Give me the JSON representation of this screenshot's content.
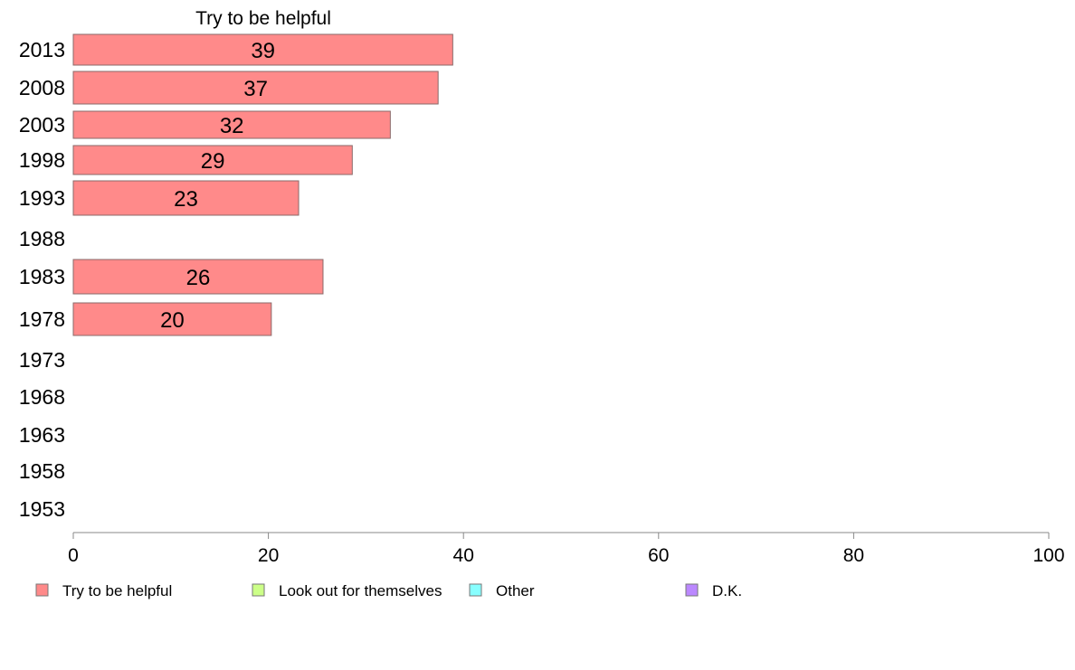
{
  "chart_data": {
    "type": "bar",
    "orientation": "horizontal",
    "title": "Try to be helpful",
    "categories": [
      "2013",
      "2008",
      "2003",
      "1998",
      "1993",
      "1988",
      "1983",
      "1978",
      "1973",
      "1968",
      "1963",
      "1958",
      "1953"
    ],
    "series": [
      {
        "name": "Try to be helpful",
        "color": "#ff8a8a",
        "values": [
          38.9,
          37.4,
          32.5,
          28.6,
          23.1,
          null,
          25.6,
          20.3,
          null,
          null,
          null,
          null,
          null
        ],
        "labels": [
          "39",
          "37",
          "32",
          "29",
          "23",
          "",
          "26",
          "20",
          "",
          "",
          "",
          "",
          ""
        ]
      }
    ],
    "xlim": [
      0,
      100
    ],
    "xticks": [
      0,
      20,
      40,
      60,
      80,
      100
    ],
    "xtick_labels": [
      "0",
      "20",
      "40",
      "60",
      "80",
      "100"
    ],
    "grid": false,
    "legend": {
      "position": "bottom",
      "entries": [
        {
          "label": "Try to be helpful",
          "color": "#ff8a8a"
        },
        {
          "label": "Look out for themselves",
          "color": "#ccff88"
        },
        {
          "label": "Other",
          "color": "#88ffff"
        },
        {
          "label": "D.K.",
          "color": "#bb88ff"
        }
      ]
    }
  }
}
